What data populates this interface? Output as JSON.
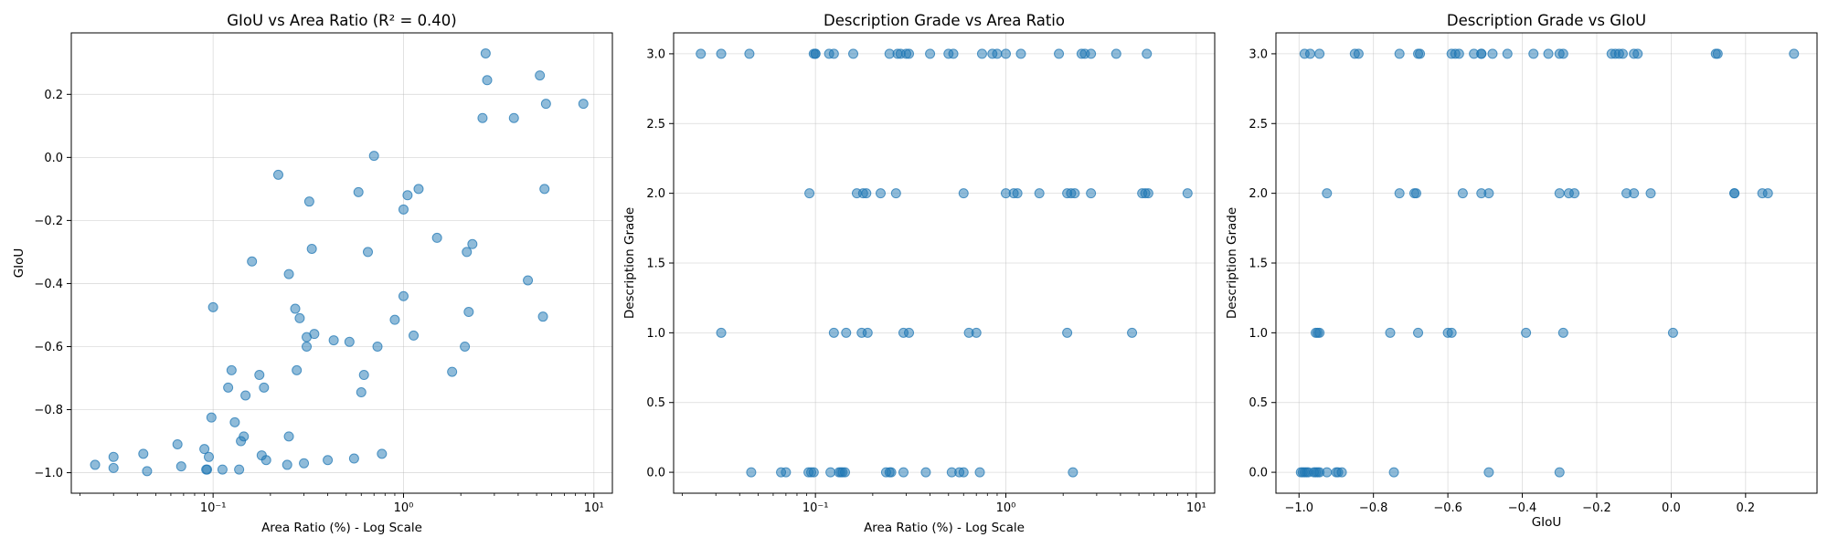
{
  "chart_data": [
    {
      "type": "scatter",
      "title": "GIoU vs Area Ratio (R² = 0.40)",
      "xlabel": "Area Ratio (%) - Log Scale",
      "ylabel": "GIoU",
      "xscale": "log",
      "xlim": [
        0.018,
        12.5
      ],
      "ylim": [
        -1.065,
        0.395
      ],
      "xticks": [
        0.1,
        1,
        10
      ],
      "xtick_labels": [
        "10⁻¹",
        "10⁰",
        "10¹"
      ],
      "yticks": [
        -1.0,
        -0.8,
        -0.6,
        -0.4,
        -0.2,
        0.0,
        0.2
      ],
      "ytick_labels": [
        "−1.0",
        "−0.8",
        "−0.6",
        "−0.4",
        "−0.2",
        "0.0",
        "0.2"
      ],
      "grid": true,
      "x": [
        0.024,
        0.03,
        0.03,
        0.043,
        0.045,
        0.065,
        0.068,
        0.09,
        0.092,
        0.093,
        0.095,
        0.1,
        0.098,
        0.112,
        0.12,
        0.125,
        0.13,
        0.137,
        0.14,
        0.145,
        0.148,
        0.16,
        0.175,
        0.18,
        0.185,
        0.19,
        0.22,
        0.245,
        0.25,
        0.25,
        0.27,
        0.275,
        0.285,
        0.3,
        0.31,
        0.31,
        0.32,
        0.33,
        0.34,
        0.4,
        0.43,
        0.52,
        0.55,
        0.58,
        0.6,
        0.62,
        0.65,
        0.7,
        0.73,
        0.77,
        0.9,
        1.0,
        1.0,
        1.05,
        1.13,
        1.2,
        1.5,
        1.8,
        2.1,
        2.15,
        2.2,
        2.3,
        2.6,
        2.7,
        2.75,
        3.8,
        4.5,
        5.2,
        5.4,
        5.5,
        5.6,
        8.8
      ],
      "y": [
        -0.975,
        -0.95,
        -0.985,
        -0.94,
        -0.995,
        -0.91,
        -0.98,
        -0.925,
        -0.99,
        -0.99,
        -0.95,
        -0.475,
        -0.825,
        -0.99,
        -0.73,
        -0.675,
        -0.84,
        -0.99,
        -0.9,
        -0.885,
        -0.755,
        -0.33,
        -0.69,
        -0.945,
        -0.73,
        -0.96,
        -0.055,
        -0.975,
        -0.885,
        -0.37,
        -0.48,
        -0.675,
        -0.51,
        -0.97,
        -0.57,
        -0.6,
        -0.14,
        -0.29,
        -0.56,
        -0.96,
        -0.58,
        -0.585,
        -0.955,
        -0.11,
        -0.745,
        -0.69,
        -0.3,
        0.005,
        -0.6,
        -0.94,
        -0.515,
        -0.165,
        -0.44,
        -0.12,
        -0.565,
        -0.1,
        -0.255,
        -0.68,
        -0.6,
        -0.3,
        -0.49,
        -0.275,
        0.125,
        0.33,
        0.245,
        0.125,
        -0.39,
        0.26,
        -0.505,
        -0.1,
        0.17,
        0.17
      ]
    },
    {
      "type": "scatter",
      "title": "Description Grade vs Area Ratio",
      "xlabel": "Area Ratio (%) - Log Scale",
      "ylabel": "Description Grade",
      "xscale": "log",
      "xlim": [
        0.018,
        12.5
      ],
      "ylim": [
        -0.15,
        3.15
      ],
      "xticks": [
        0.1,
        1,
        10
      ],
      "xtick_labels": [
        "10⁻¹",
        "10⁰",
        "10¹"
      ],
      "yticks": [
        0.0,
        0.5,
        1.0,
        1.5,
        2.0,
        2.5,
        3.0
      ],
      "ytick_labels": [
        "0.0",
        "0.5",
        "1.0",
        "1.5",
        "2.0",
        "2.5",
        "3.0"
      ],
      "grid": true,
      "x": [
        0.025,
        0.032,
        0.045,
        0.098,
        0.1,
        0.1,
        0.118,
        0.125,
        0.158,
        0.245,
        0.27,
        0.28,
        0.3,
        0.31,
        0.4,
        0.5,
        0.53,
        0.75,
        0.85,
        0.9,
        1.0,
        1.2,
        1.9,
        2.5,
        2.6,
        2.8,
        3.8,
        5.5,
        0.093,
        0.165,
        0.178,
        0.185,
        0.22,
        0.265,
        0.6,
        1.0,
        1.1,
        1.15,
        1.5,
        2.1,
        2.2,
        2.3,
        2.8,
        5.2,
        5.4,
        5.6,
        9.0,
        0.032,
        0.125,
        0.145,
        0.175,
        0.188,
        0.29,
        0.31,
        0.64,
        0.7,
        2.1,
        4.6,
        0.046,
        0.066,
        0.07,
        0.092,
        0.095,
        0.098,
        0.12,
        0.133,
        0.136,
        0.139,
        0.143,
        0.235,
        0.245,
        0.25,
        0.29,
        0.38,
        0.52,
        0.57,
        0.6,
        0.73,
        2.25
      ],
      "y": [
        3,
        3,
        3,
        3,
        3,
        3,
        3,
        3,
        3,
        3,
        3,
        3,
        3,
        3,
        3,
        3,
        3,
        3,
        3,
        3,
        3,
        3,
        3,
        3,
        3,
        3,
        3,
        3,
        2,
        2,
        2,
        2,
        2,
        2,
        2,
        2,
        2,
        2,
        2,
        2,
        2,
        2,
        2,
        2,
        2,
        2,
        2,
        1,
        1,
        1,
        1,
        1,
        1,
        1,
        1,
        1,
        1,
        1,
        0,
        0,
        0,
        0,
        0,
        0,
        0,
        0,
        0,
        0,
        0,
        0,
        0,
        0,
        0,
        0,
        0,
        0,
        0,
        0,
        0
      ]
    },
    {
      "type": "scatter",
      "title": "Description Grade vs GIoU",
      "xlabel": "GIoU",
      "ylabel": "Description Grade",
      "xscale": "linear",
      "xlim": [
        -1.062,
        0.392
      ],
      "ylim": [
        -0.15,
        3.15
      ],
      "xticks": [
        -1.0,
        -0.8,
        -0.6,
        -0.4,
        -0.2,
        0.0,
        0.2
      ],
      "xtick_labels": [
        "−1.0",
        "−0.8",
        "−0.6",
        "−0.4",
        "−0.2",
        "0.0",
        "0.2"
      ],
      "yticks": [
        0.0,
        0.5,
        1.0,
        1.5,
        2.0,
        2.5,
        3.0
      ],
      "ytick_labels": [
        "0.0",
        "0.5",
        "1.0",
        "1.5",
        "2.0",
        "2.5",
        "3.0"
      ],
      "grid": true,
      "x": [
        -0.985,
        -0.97,
        -0.945,
        -0.85,
        -0.84,
        -0.73,
        -0.68,
        -0.675,
        -0.59,
        -0.58,
        -0.57,
        -0.53,
        -0.51,
        -0.51,
        -0.48,
        -0.44,
        -0.37,
        -0.33,
        -0.3,
        -0.29,
        -0.16,
        -0.15,
        -0.14,
        -0.13,
        -0.1,
        -0.09,
        0.12,
        0.125,
        0.33,
        -0.925,
        -0.73,
        -0.69,
        -0.685,
        -0.56,
        -0.51,
        -0.49,
        -0.3,
        -0.275,
        -0.26,
        -0.12,
        -0.1,
        -0.055,
        0.17,
        0.17,
        0.245,
        0.26,
        -0.955,
        -0.95,
        -0.945,
        -0.755,
        -0.68,
        -0.6,
        -0.59,
        -0.39,
        -0.29,
        0.005,
        -0.995,
        -0.99,
        -0.985,
        -0.98,
        -0.975,
        -0.96,
        -0.955,
        -0.95,
        -0.945,
        -0.925,
        -0.9,
        -0.895,
        -0.885,
        -0.745,
        -0.49,
        -0.3
      ],
      "y": [
        3,
        3,
        3,
        3,
        3,
        3,
        3,
        3,
        3,
        3,
        3,
        3,
        3,
        3,
        3,
        3,
        3,
        3,
        3,
        3,
        3,
        3,
        3,
        3,
        3,
        3,
        3,
        3,
        3,
        2,
        2,
        2,
        2,
        2,
        2,
        2,
        2,
        2,
        2,
        2,
        2,
        2,
        2,
        2,
        2,
        2,
        1,
        1,
        1,
        1,
        1,
        1,
        1,
        1,
        1,
        1,
        0,
        0,
        0,
        0,
        0,
        0,
        0,
        0,
        0,
        0,
        0,
        0,
        0,
        0,
        0,
        0
      ]
    }
  ]
}
